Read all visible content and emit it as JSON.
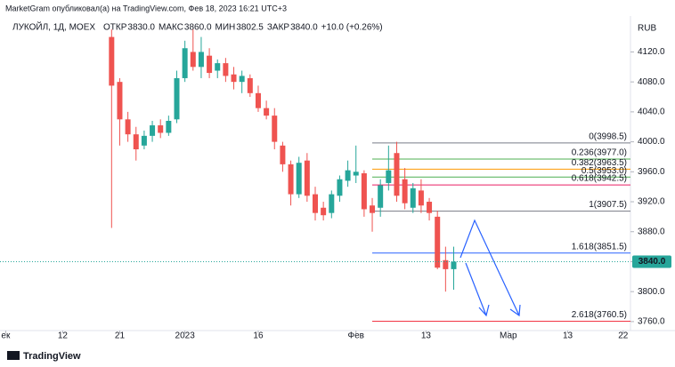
{
  "chart_data": {
    "type": "candlestick",
    "attribution": "MarketGram опубликовал(а) на TradingView.com, Фев 18, 2023 16:21 UTC+3",
    "symbol": "ЛУКОЙЛ, 1Д, MOEX",
    "ohlc_header": [
      {
        "label": "ОТКР",
        "value": "3830.0"
      },
      {
        "label": "МАКС",
        "value": "3860.0"
      },
      {
        "label": "МИН",
        "value": "3802.5"
      },
      {
        "label": "ЗАКР",
        "value": "3840.0"
      }
    ],
    "change": "+10.0 (+0.26%)",
    "currency": "RUB",
    "brand": "TradingView",
    "up_color": "#26a69a",
    "down_color": "#ef5350",
    "series": [
      {
        "open": [
          4140,
          4080,
          4030,
          4010,
          3995,
          4008,
          4022,
          4012,
          4030,
          4085,
          4120,
          4100,
          4115,
          4095,
          4105,
          4090,
          4080,
          4085,
          4065,
          4045,
          4035,
          3995,
          3970,
          3930,
          3975,
          3930,
          3912,
          3905,
          3928,
          3948,
          3955,
          3958,
          3915,
          3912,
          3945,
          3985,
          3950,
          3912,
          3935,
          3920,
          3900,
          3842,
          3830
        ],
        "high": [
          4150,
          4085,
          4040,
          4020,
          4015,
          4028,
          4030,
          4035,
          4095,
          4135,
          4150,
          4140,
          4125,
          4110,
          4112,
          4100,
          4095,
          4090,
          4075,
          4055,
          4045,
          4000,
          3975,
          3980,
          3985,
          3940,
          3920,
          3935,
          3955,
          3975,
          3995,
          3962,
          3925,
          3950,
          3995,
          4000,
          3965,
          3945,
          3950,
          3925,
          3908,
          3860,
          3860
        ],
        "low": [
          3885,
          3995,
          4000,
          3975,
          3990,
          4000,
          4005,
          4008,
          4025,
          4080,
          4095,
          4085,
          4085,
          4085,
          4080,
          4070,
          4065,
          4060,
          4040,
          4030,
          3990,
          3960,
          3915,
          3925,
          3920,
          3895,
          3895,
          3898,
          3920,
          3940,
          3945,
          3900,
          3880,
          3900,
          3935,
          3920,
          3910,
          3905,
          3905,
          3895,
          3830,
          3800,
          3802.5
        ],
        "close": [
          4075,
          4030,
          4010,
          3990,
          4008,
          4022,
          4012,
          4028,
          4085,
          4125,
          4100,
          4120,
          4092,
          4105,
          4088,
          4080,
          4088,
          4065,
          4045,
          4035,
          4000,
          3970,
          3930,
          3972,
          3928,
          3905,
          3902,
          3930,
          3950,
          3962,
          3960,
          3910,
          3905,
          3942,
          3962,
          3928,
          3918,
          3938,
          3915,
          3905,
          3832,
          3830,
          3840
        ]
      }
    ],
    "xticks": [
      {
        "value": -13,
        "label": "ек"
      },
      {
        "value": -6,
        "label": "12"
      },
      {
        "value": 1,
        "label": "21"
      },
      {
        "value": 9,
        "label": "2023"
      },
      {
        "value": 18,
        "label": "16"
      },
      {
        "value": 30,
        "label": "Фев"
      },
      {
        "value": 38.6,
        "label": "13"
      },
      {
        "value": 48.7,
        "label": "Мар"
      },
      {
        "value": 56,
        "label": "13"
      },
      {
        "value": 62.8,
        "label": "22"
      }
    ],
    "xlim": [
      -13.7,
      63.7
    ],
    "ylim": [
      3748,
      4168
    ],
    "yticks": [
      {
        "value": 3760,
        "label": "3760.0"
      },
      {
        "value": 3800,
        "label": "3800.0"
      },
      {
        "value": 3840,
        "label": "3840.0"
      },
      {
        "value": 3880,
        "label": "3880.0"
      },
      {
        "value": 3920,
        "label": "3920.0"
      },
      {
        "value": 3960,
        "label": "3960.0"
      },
      {
        "value": 4000,
        "label": "4000.0"
      },
      {
        "value": 4040,
        "label": "4040.0"
      },
      {
        "value": 4080,
        "label": "4080.0"
      },
      {
        "value": 4120,
        "label": "4120.0"
      }
    ],
    "fib_levels": [
      {
        "label": "0(3998.5)",
        "value": 3998.5,
        "color": "#787b86"
      },
      {
        "label": "0.236(3977.0)",
        "value": 3977.0,
        "color": "#4caf50"
      },
      {
        "label": "0.382(3963.5)",
        "value": 3963.5,
        "color": "#ff9800"
      },
      {
        "label": "0.5(3953.0)",
        "value": 3953.0,
        "color": "#4caf50"
      },
      {
        "label": "0.618(3942.5)",
        "value": 3942.5,
        "color": "#e91e63"
      },
      {
        "label": "1(3907.5)",
        "value": 3907.5,
        "color": "#787b86"
      },
      {
        "label": "1.618(3851.5)",
        "value": 3851.5,
        "color": "#2962ff"
      },
      {
        "label": "2.618(3760.5)",
        "value": 3760.5,
        "color": "#f23645"
      }
    ]
  }
}
